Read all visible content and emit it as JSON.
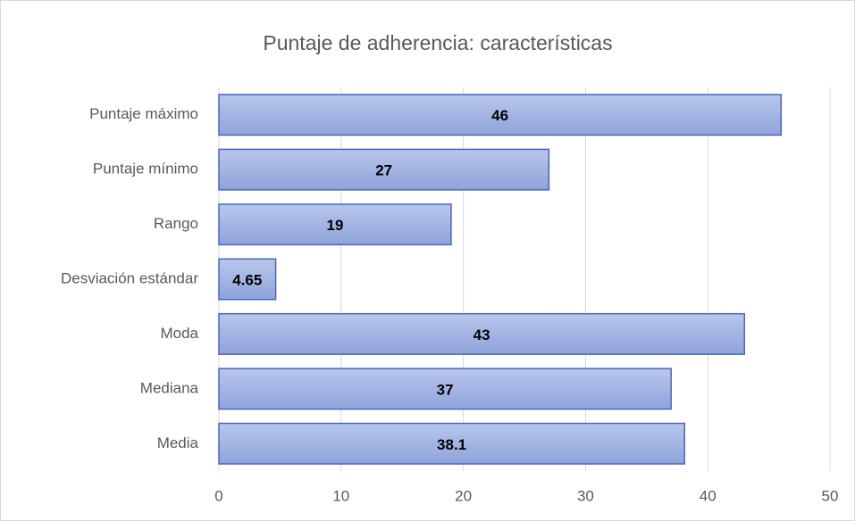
{
  "chart_data": {
    "type": "bar",
    "orientation": "horizontal",
    "title": "Puntaje de adherencia: características",
    "categories": [
      "Puntaje máximo",
      "Puntaje mínimo",
      "Rango",
      "Desviación estándar",
      "Moda",
      "Mediana",
      "Media"
    ],
    "values": [
      46,
      27,
      19,
      4.65,
      43,
      37,
      38.1
    ],
    "color": "#a3b5e3",
    "xlim": [
      0,
      50
    ],
    "xticks": [
      0,
      10,
      20,
      30,
      40,
      50
    ],
    "grid": true
  }
}
